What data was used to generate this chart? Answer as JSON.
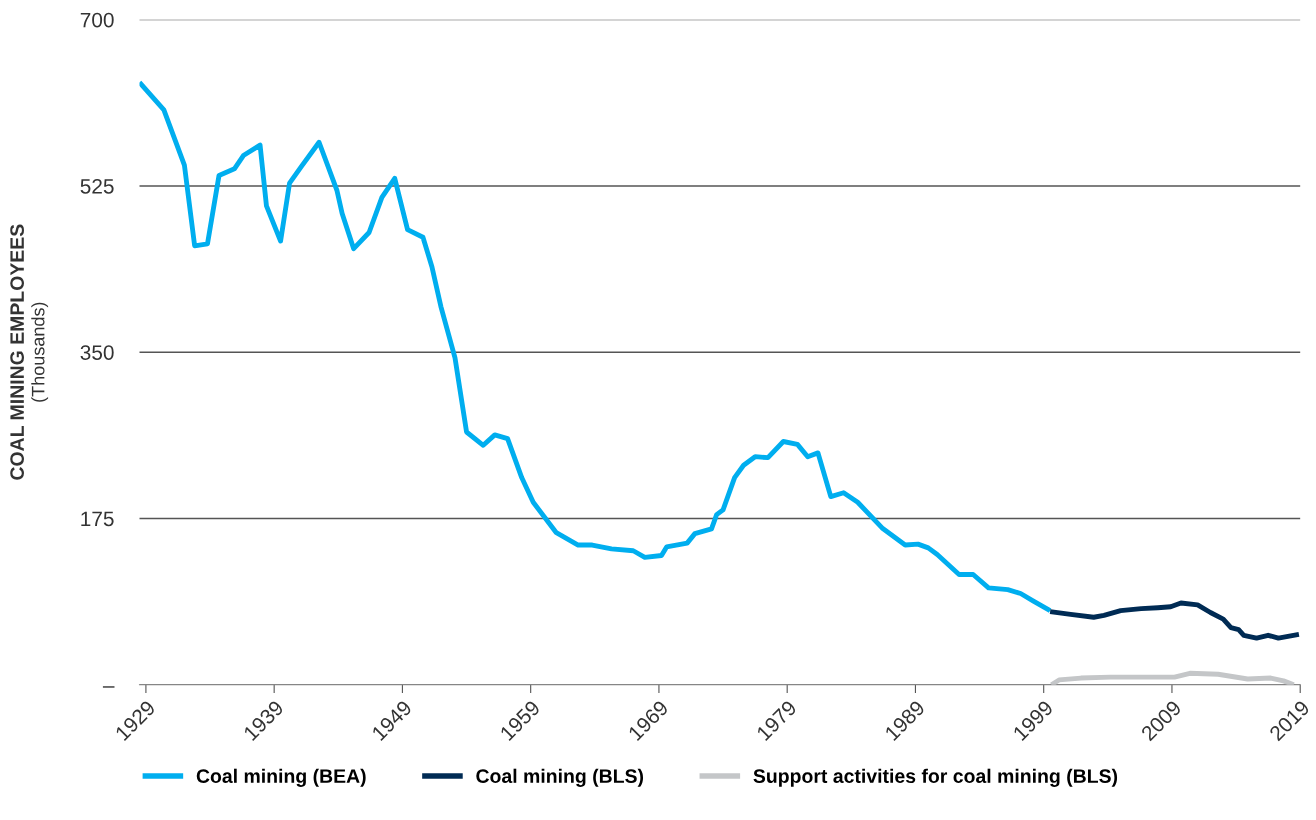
{
  "chart_data": {
    "type": "line",
    "ylabel": "COAL MINING EMPLOYEES\n(Thousands)",
    "xlim": [
      1928.5,
      2019
    ],
    "xticks": [
      1929,
      1939,
      1949,
      1959,
      1969,
      1979,
      1989,
      1999,
      2009,
      2019
    ],
    "ylim": [
      0,
      700
    ],
    "yticks": [
      {
        "value": 0,
        "label": "–"
      },
      175,
      350,
      525,
      700
    ],
    "grid": "y",
    "legend": "bottom",
    "marker": "none",
    "line_style": "solid",
    "series": [
      {
        "name": "Coal mining (BEA)",
        "color": "#00aeef",
        "x": [
          1928.5,
          1930.4,
          1932.0,
          1932.8,
          1933.8,
          1934.7,
          1935.9,
          1936.6,
          1937.9,
          1938.4,
          1939.5,
          1940.2,
          1941.1,
          1942.5,
          1943.9,
          1944.3,
          1945.2,
          1946.4,
          1947.4,
          1948.4,
          1949.4,
          1950.6,
          1951.3,
          1952.0,
          1953.1,
          1954.0,
          1955.3,
          1956.2,
          1957.2,
          1958.3,
          1959.2,
          1961.0,
          1962.7,
          1963.8,
          1965.3,
          1967.0,
          1967.9,
          1969.2,
          1969.6,
          1971.2,
          1971.8,
          1973.1,
          1973.5,
          1974.0,
          1974.9,
          1975.6,
          1976.5,
          1977.5,
          1978.7,
          1979.8,
          1980.6,
          1981.4,
          1982.4,
          1983.4,
          1984.5,
          1986.4,
          1988.2,
          1989.2,
          1990.0,
          1990.7,
          1992.4,
          1993.5,
          1994.7,
          1996.2,
          1997.2,
          1998.2,
          1999.5
        ],
        "values": [
          634,
          605,
          547,
          462,
          464,
          536,
          543,
          557,
          568,
          504,
          467,
          528,
          545,
          571,
          520,
          496,
          459,
          476,
          513,
          533,
          479,
          471,
          440,
          398,
          344,
          266,
          252,
          263,
          259,
          218,
          192,
          160,
          147,
          147,
          143,
          141,
          134,
          136,
          145,
          149,
          159,
          164,
          179,
          184,
          218,
          231,
          240,
          239,
          256,
          253,
          240,
          244,
          198,
          202,
          192,
          165,
          147,
          148,
          144,
          137,
          116,
          116,
          102,
          100,
          96,
          88,
          78
        ]
      },
      {
        "name": "Coal mining (BLS)",
        "color": "#002b54",
        "x": [
          1999.5,
          2001.1,
          2002.9,
          2003.7,
          2005.0,
          2006.6,
          2007.9,
          2008.9,
          2009.7,
          2011.0,
          2012.0,
          2013.0,
          2013.6,
          2014.2,
          2014.6,
          2015.6,
          2016.5,
          2017.3,
          2018.9
        ],
        "values": [
          77,
          74,
          71,
          73,
          78,
          80,
          81,
          82,
          86,
          84,
          76,
          69,
          60,
          58,
          52,
          49,
          52,
          49,
          53
        ]
      },
      {
        "name": "Support activities for coal mining (BLS)",
        "color": "#c4c6c8",
        "x": [
          1999.6,
          2000.2,
          2001.9,
          2004.2,
          2006.6,
          2009.2,
          2010.4,
          2012.6,
          2014.9,
          2016.7,
          2017.7,
          2018.5
        ],
        "values": [
          0,
          5,
          7,
          8,
          8,
          8,
          12,
          11,
          6,
          7,
          4,
          0
        ]
      }
    ]
  }
}
